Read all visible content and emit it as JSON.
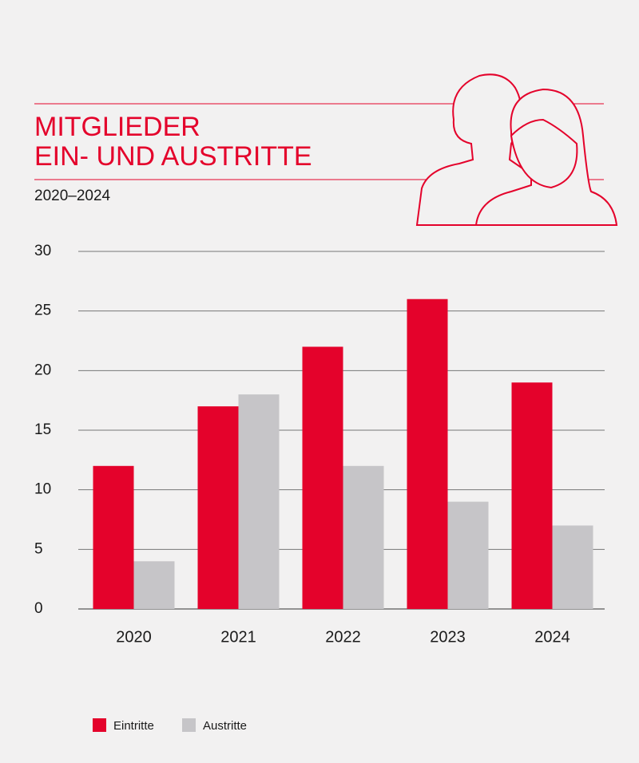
{
  "chart_data": {
    "type": "bar",
    "title": [
      "MITGLIEDER",
      "EIN- UND AUSTRITTE"
    ],
    "subtitle": "2020–2024",
    "categories": [
      "2020",
      "2021",
      "2022",
      "2023",
      "2024"
    ],
    "series": [
      {
        "name": "Eintritte",
        "color": "#e4022b",
        "values": [
          12,
          17,
          22,
          26,
          19
        ]
      },
      {
        "name": "Austritte",
        "color": "#c6c5c8",
        "values": [
          4,
          18,
          12,
          9,
          7
        ]
      }
    ],
    "ylim": [
      0,
      30
    ],
    "yticks": [
      0,
      5,
      10,
      15,
      20,
      25,
      30
    ],
    "grid": true,
    "legend": "bottom"
  }
}
